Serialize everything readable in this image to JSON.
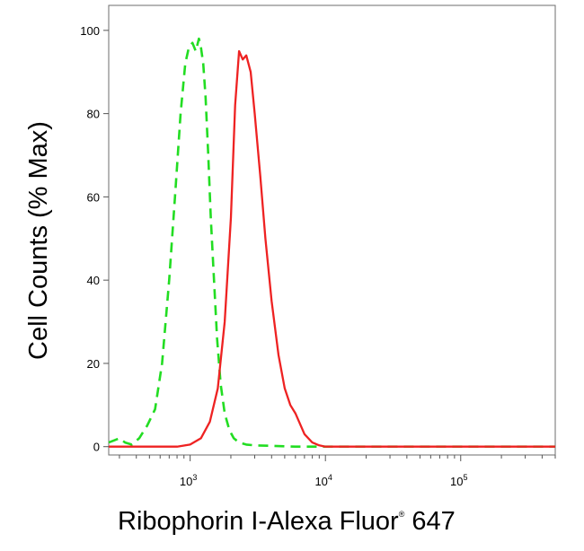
{
  "chart_data": {
    "type": "line",
    "title": "",
    "xlabel": "Ribophorin I-Alexa Fluor",
    "xlabel_mark": "®",
    "xlabel_suffix": " 647",
    "ylabel": "Cell Counts (% Max)",
    "xscale": "log",
    "xlim": [
      250,
      500000
    ],
    "ylim": [
      -2,
      106
    ],
    "x_ticks": [
      {
        "base": "10",
        "exp": "3",
        "value": 1000
      },
      {
        "base": "10",
        "exp": "4",
        "value": 10000
      },
      {
        "base": "10",
        "exp": "5",
        "value": 100000
      }
    ],
    "y_ticks": [
      0,
      20,
      40,
      60,
      80,
      100
    ],
    "grid": false,
    "legend": "none",
    "series": [
      {
        "color": "#22dd22",
        "style": "dashed",
        "x": [
          250,
          300,
          330,
          370,
          420,
          480,
          550,
          620,
          700,
          780,
          850,
          920,
          980,
          1040,
          1100,
          1160,
          1200,
          1250,
          1300,
          1360,
          1420,
          1500,
          1580,
          1680,
          1800,
          1950,
          2100,
          2300,
          2600,
          3000,
          4000,
          6000,
          10000,
          30000,
          100000,
          500000
        ],
        "y": [
          1,
          2,
          1,
          0.5,
          2,
          5,
          9,
          20,
          40,
          62,
          80,
          92,
          96,
          97,
          95,
          98,
          96,
          92,
          84,
          70,
          55,
          40,
          26,
          15,
          8,
          4,
          2,
          1,
          0.5,
          0.3,
          0.2,
          0,
          0,
          0,
          0,
          0
        ]
      },
      {
        "color": "#ee2222",
        "style": "solid",
        "x": [
          250,
          800,
          1000,
          1200,
          1400,
          1600,
          1800,
          2000,
          2150,
          2300,
          2450,
          2600,
          2800,
          3000,
          3300,
          3600,
          4000,
          4500,
          5000,
          5500,
          6000,
          7000,
          8000,
          9000,
          10000,
          30000,
          100000,
          500000
        ],
        "y": [
          0,
          0,
          0.5,
          2,
          6,
          14,
          30,
          55,
          82,
          95,
          93,
          94,
          90,
          80,
          65,
          50,
          35,
          22,
          14,
          10,
          8,
          3,
          1,
          0.3,
          0,
          0,
          0,
          0
        ]
      }
    ]
  }
}
